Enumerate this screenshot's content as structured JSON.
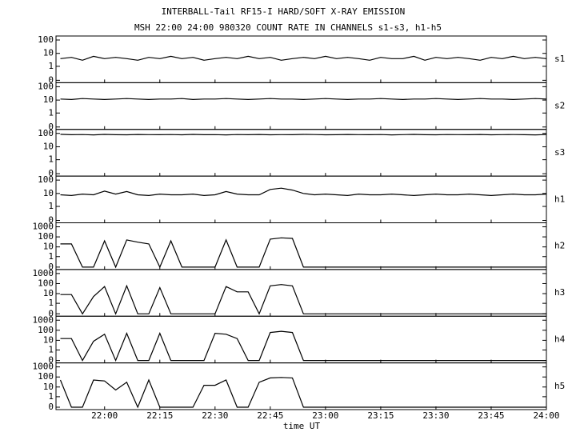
{
  "chart_data": {
    "type": "line",
    "title": "INTERBALL-Tail RF15-I HARD/SOFT X-RAY EMISSION",
    "subtitle": "MSH 22:00 24:00 980320  COUNT RATE IN CHANNELS s1-s3, h1-h5",
    "x_label": "time UT",
    "yscale": "symlog",
    "color": "#000000",
    "x": [
      21.8,
      21.85,
      21.9,
      21.95,
      22.0,
      22.05,
      22.1,
      22.15,
      22.2,
      22.25,
      22.3,
      22.35,
      22.4,
      22.45,
      22.5,
      22.55,
      22.6,
      22.65,
      22.7,
      22.75,
      22.8,
      22.85,
      22.9,
      22.95,
      23.0,
      23.05,
      23.1,
      23.15,
      23.2,
      23.25,
      23.3,
      23.35,
      23.4,
      23.45,
      23.5,
      23.55,
      23.6,
      23.65,
      23.7,
      23.75,
      23.8,
      23.85,
      23.9,
      23.95,
      24.0
    ],
    "xlim": [
      21.78,
      24.0
    ],
    "xticks": [
      {
        "value": 22.0,
        "label": "22:00"
      },
      {
        "value": 22.25,
        "label": "22:15"
      },
      {
        "value": 22.5,
        "label": "22:30"
      },
      {
        "value": 22.75,
        "label": "22:45"
      },
      {
        "value": 23.0,
        "label": "23:00"
      },
      {
        "value": 23.25,
        "label": "23:15"
      },
      {
        "value": 23.5,
        "label": "23:30"
      },
      {
        "value": 23.75,
        "label": "23:45"
      },
      {
        "value": 24.0,
        "label": "24:00"
      }
    ],
    "series": [
      {
        "name": "s1",
        "ylim": [
          0,
          100
        ],
        "yticks": [
          0,
          1,
          10,
          100
        ],
        "values": [
          4,
          5,
          3,
          6,
          4,
          5,
          4,
          3,
          5,
          4,
          6,
          4,
          5,
          3,
          4,
          5,
          4,
          6,
          4,
          5,
          3,
          4,
          5,
          4,
          6,
          4,
          5,
          4,
          3,
          5,
          4,
          4,
          6,
          3,
          5,
          4,
          5,
          4,
          3,
          5,
          4,
          6,
          4,
          5,
          4
        ]
      },
      {
        "name": "s2",
        "ylim": [
          0,
          100
        ],
        "yticks": [
          0,
          1,
          10,
          100
        ],
        "values": [
          12,
          11,
          13,
          12,
          11,
          12,
          13,
          12,
          11,
          12,
          12,
          13,
          11,
          12,
          12,
          13,
          12,
          11,
          12,
          13,
          12,
          12,
          11,
          12,
          13,
          12,
          11,
          12,
          12,
          13,
          12,
          11,
          12,
          12,
          13,
          12,
          11,
          12,
          13,
          12,
          12,
          11,
          12,
          13,
          12
        ]
      },
      {
        "name": "s3",
        "ylim": [
          0,
          100
        ],
        "yticks": [
          0,
          1,
          10,
          100
        ],
        "values": [
          85,
          80,
          82,
          78,
          84,
          80,
          79,
          83,
          81,
          80,
          82,
          79,
          84,
          80,
          81,
          78,
          82,
          80,
          83,
          79,
          81,
          80,
          84,
          82,
          79,
          80,
          83,
          81,
          80,
          82,
          78,
          81,
          84,
          80,
          79,
          82,
          81,
          80,
          83,
          79,
          81,
          82,
          80,
          78,
          82
        ]
      },
      {
        "name": "h1",
        "ylim": [
          0,
          100
        ],
        "yticks": [
          0,
          1,
          10,
          100
        ],
        "values": [
          8,
          7,
          9,
          8,
          15,
          9,
          14,
          8,
          7,
          9,
          8,
          8,
          9,
          7,
          8,
          14,
          9,
          8,
          8,
          20,
          25,
          18,
          10,
          8,
          9,
          8,
          7,
          9,
          8,
          8,
          9,
          8,
          7,
          8,
          9,
          8,
          8,
          9,
          8,
          7,
          8,
          9,
          8,
          8,
          9
        ]
      },
      {
        "name": "h2",
        "ylim": [
          0,
          1000
        ],
        "yticks": [
          0,
          1,
          10,
          100,
          1000
        ],
        "values": [
          20,
          20,
          0,
          0,
          40,
          0,
          50,
          30,
          20,
          0,
          40,
          0,
          0,
          0,
          0,
          50,
          0,
          0,
          0,
          60,
          80,
          70,
          0,
          0,
          0,
          0,
          0,
          0,
          0,
          0,
          0,
          0,
          0,
          0,
          0,
          0,
          0,
          0,
          0,
          0,
          0,
          0,
          0,
          0,
          0
        ]
      },
      {
        "name": "h3",
        "ylim": [
          0,
          1000
        ],
        "yticks": [
          0,
          1,
          10,
          100,
          1000
        ],
        "values": [
          8,
          8,
          0,
          5,
          50,
          0,
          60,
          0,
          0,
          40,
          0,
          0,
          0,
          0,
          0,
          50,
          15,
          15,
          0,
          60,
          80,
          60,
          0,
          0,
          0,
          0,
          0,
          0,
          0,
          0,
          0,
          0,
          0,
          0,
          0,
          0,
          0,
          0,
          0,
          0,
          0,
          0,
          0,
          0,
          0
        ]
      },
      {
        "name": "h4",
        "ylim": [
          0,
          1000
        ],
        "yticks": [
          0,
          1,
          10,
          100,
          1000
        ],
        "values": [
          15,
          15,
          0,
          8,
          40,
          0,
          50,
          0,
          0,
          50,
          0,
          0,
          0,
          0,
          50,
          40,
          15,
          0,
          0,
          60,
          80,
          60,
          0,
          0,
          0,
          0,
          0,
          0,
          0,
          0,
          0,
          0,
          0,
          0,
          0,
          0,
          0,
          0,
          0,
          0,
          0,
          0,
          0,
          0,
          0
        ]
      },
      {
        "name": "h5",
        "ylim": [
          0,
          1000
        ],
        "yticks": [
          0,
          1,
          10,
          100,
          1000
        ],
        "values": [
          50,
          0,
          0,
          50,
          40,
          5,
          30,
          0,
          50,
          0,
          0,
          0,
          0,
          15,
          15,
          50,
          0,
          0,
          30,
          80,
          90,
          80,
          0,
          0,
          0,
          0,
          0,
          0,
          0,
          0,
          0,
          0,
          0,
          0,
          0,
          0,
          0,
          0,
          0,
          0,
          0,
          0,
          0,
          0,
          0
        ]
      }
    ]
  }
}
